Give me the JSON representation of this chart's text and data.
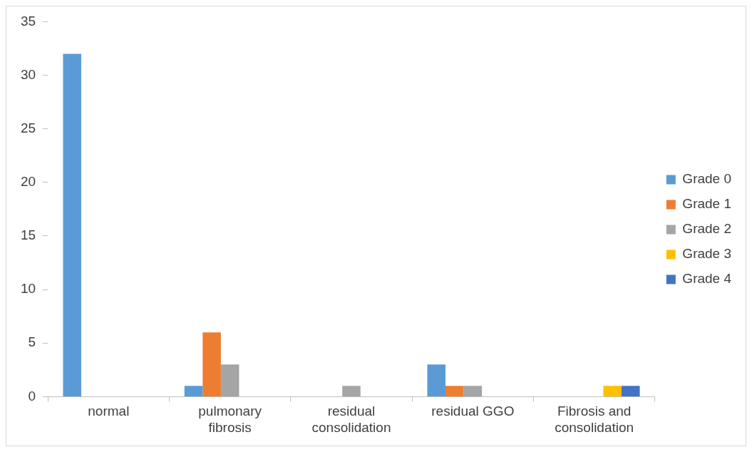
{
  "chart_data": {
    "type": "bar",
    "categories": [
      "normal",
      "pulmonary fibrosis",
      "residual consolidation",
      "residual GGO",
      "Fibrosis and consolidation"
    ],
    "series": [
      {
        "name": "Grade 0",
        "color": "#5b9bd5",
        "values": [
          32,
          1,
          0,
          3,
          0
        ]
      },
      {
        "name": "Grade 1",
        "color": "#ed7d31",
        "values": [
          0,
          6,
          0,
          1,
          0
        ]
      },
      {
        "name": "Grade 2",
        "color": "#a5a5a5",
        "values": [
          0,
          3,
          1,
          1,
          0
        ]
      },
      {
        "name": "Grade 3",
        "color": "#ffc000",
        "values": [
          0,
          0,
          0,
          0,
          1
        ]
      },
      {
        "name": "Grade 4",
        "color": "#4472c4",
        "values": [
          0,
          0,
          0,
          0,
          1
        ]
      }
    ],
    "ylim": [
      0,
      35
    ],
    "yticks": [
      0,
      5,
      10,
      15,
      20,
      25,
      30,
      35
    ],
    "grid": false,
    "legend": "right"
  }
}
